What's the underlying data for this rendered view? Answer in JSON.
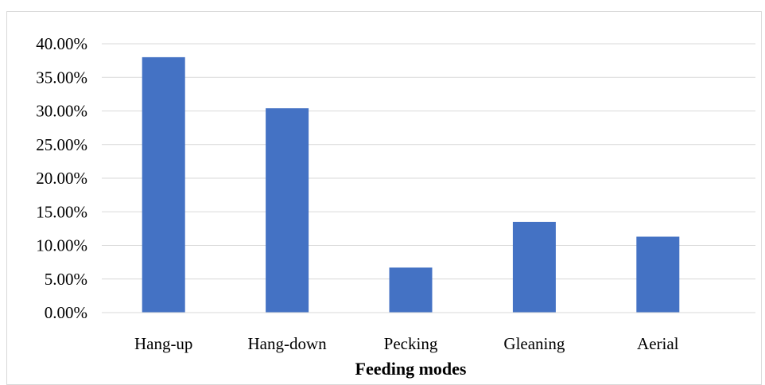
{
  "chart_data": {
    "type": "bar",
    "title": "",
    "xlabel": "Feeding modes",
    "ylabel": "",
    "categories": [
      "Hang-up",
      "Hang-down",
      "Pecking",
      "Gleaning",
      "Aerial"
    ],
    "values": [
      38.0,
      30.4,
      6.7,
      13.5,
      11.3
    ],
    "ylim": [
      0,
      40
    ],
    "y_ticks": [
      "0.00%",
      "5.00%",
      "10.00%",
      "15.00%",
      "20.00%",
      "25.00%",
      "30.00%",
      "35.00%",
      "40.00%"
    ],
    "grid": true,
    "bar_color": "#4472c4",
    "grid_color": "#d9d9d9"
  }
}
